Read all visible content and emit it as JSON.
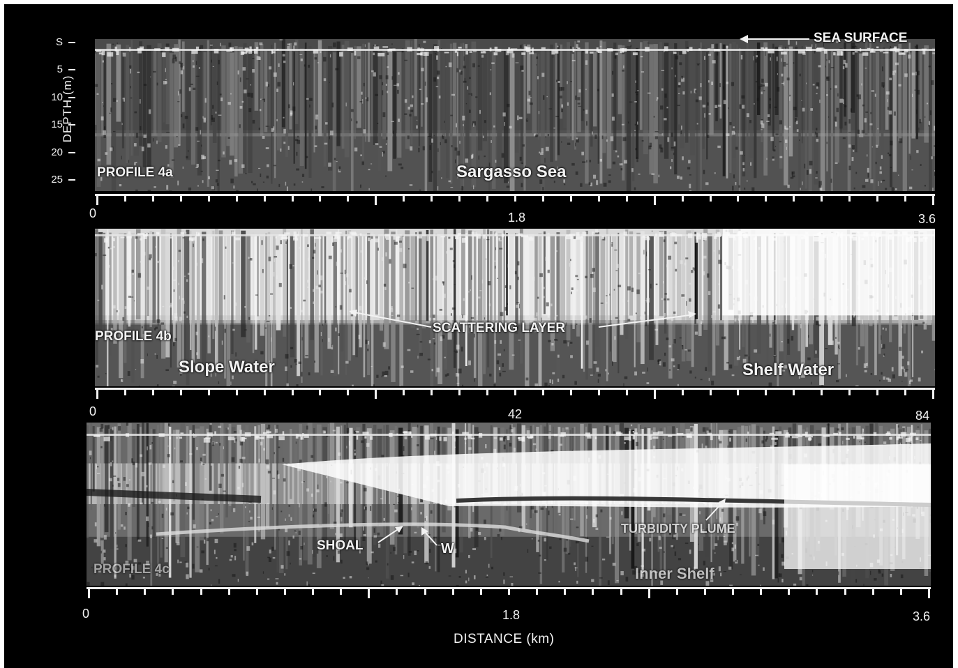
{
  "figure": {
    "depth_axis": {
      "label": "DEPTH (m)",
      "ticks": [
        "S",
        "5",
        "10",
        "15",
        "20",
        "25"
      ]
    },
    "x_axis_label": "DISTANCE (km)",
    "colors": {
      "background": "#000000",
      "ink": "#f2f2f2"
    },
    "panels": [
      {
        "id": "4a",
        "profile_label": "PROFILE 4a",
        "region_labels": [
          "Sargasso Sea"
        ],
        "annotations": [
          "SEA SURFACE"
        ],
        "distance_ticks": [
          "0",
          "1.8",
          "3.6"
        ],
        "tone": "dark"
      },
      {
        "id": "4b",
        "profile_label": "PROFILE 4b",
        "region_labels": [
          "Slope Water",
          "Shelf Water"
        ],
        "annotations": [
          "SCATTERING LAYER"
        ],
        "distance_ticks": [
          "0",
          "42",
          "84"
        ],
        "tone": "bright-top"
      },
      {
        "id": "4c",
        "profile_label": "PROFILE 4c",
        "region_labels": [
          "Inner Shelf"
        ],
        "annotations": [
          "TURBIDITY PLUME",
          "SHOAL",
          "W"
        ],
        "distance_ticks": [
          "0",
          "1.8",
          "3.6"
        ],
        "tone": "plume"
      }
    ]
  }
}
